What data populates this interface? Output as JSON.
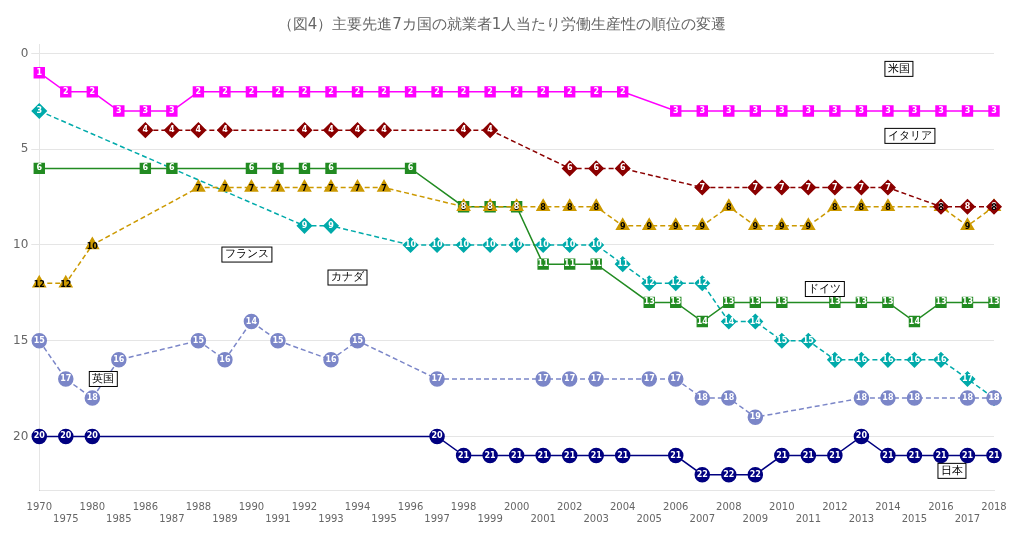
{
  "chart_data": {
    "type": "line",
    "title": "（図4）主要先進7カ国の就業者1人当たり労働生産性の順位の変遷",
    "categories": [
      "1970",
      "1975",
      "1980",
      "1985",
      "1986",
      "1987",
      "1988",
      "1989",
      "1990",
      "1991",
      "1992",
      "1993",
      "1994",
      "1995",
      "1996",
      "1997",
      "1998",
      "1999",
      "2000",
      "2001",
      "2002",
      "2003",
      "2004",
      "2005",
      "2006",
      "2007",
      "2008",
      "2009",
      "2010",
      "2011",
      "2012",
      "2013",
      "2014",
      "2015",
      "2016",
      "2017",
      "2018"
    ],
    "series": [
      {
        "name": "米国",
        "color": "#ff00ff",
        "marker": "square",
        "line_style": "solid",
        "values": [
          1,
          2,
          2,
          3,
          3,
          3,
          2,
          2,
          2,
          2,
          2,
          2,
          2,
          2,
          2,
          2,
          2,
          2,
          2,
          2,
          2,
          2,
          2,
          null,
          3,
          3,
          3,
          3,
          3,
          3,
          3,
          3,
          3,
          3,
          3,
          3,
          3
        ]
      },
      {
        "name": "イタリア",
        "color": "#8b0000",
        "marker": "diamond",
        "line_style": "dashed",
        "values": [
          null,
          null,
          null,
          null,
          4,
          4,
          4,
          4,
          null,
          null,
          4,
          4,
          4,
          4,
          null,
          null,
          4,
          4,
          null,
          null,
          6,
          6,
          6,
          null,
          null,
          7,
          null,
          7,
          7,
          7,
          7,
          7,
          7,
          null,
          8,
          8,
          8
        ]
      },
      {
        "name": "フランス",
        "color": "#cc9900",
        "marker": "triangle",
        "line_style": "dashed",
        "values": [
          12,
          12,
          10,
          null,
          null,
          null,
          7,
          7,
          7,
          7,
          7,
          7,
          7,
          7,
          null,
          null,
          8,
          8,
          8,
          8,
          8,
          8,
          9,
          9,
          9,
          9,
          8,
          9,
          9,
          9,
          8,
          8,
          8,
          null,
          8,
          9,
          8
        ]
      },
      {
        "name": "ドイツ",
        "color": "#228b22",
        "marker": "square",
        "line_style": "solid",
        "values": [
          6,
          null,
          null,
          null,
          6,
          6,
          null,
          null,
          6,
          6,
          6,
          6,
          null,
          null,
          6,
          null,
          8,
          8,
          8,
          11,
          11,
          11,
          null,
          13,
          13,
          14,
          13,
          13,
          13,
          null,
          13,
          13,
          13,
          14,
          13,
          13,
          13
        ]
      },
      {
        "name": "英国",
        "color": "#7b86c8",
        "marker": "circle",
        "line_style": "dashed",
        "values": [
          15,
          17,
          18,
          16,
          null,
          null,
          15,
          16,
          14,
          15,
          null,
          16,
          15,
          null,
          null,
          17,
          null,
          null,
          null,
          17,
          17,
          17,
          null,
          17,
          17,
          18,
          18,
          19,
          null,
          null,
          null,
          18,
          18,
          18,
          null,
          18,
          18
        ]
      },
      {
        "name": "日本",
        "color": "#000080",
        "marker": "circle",
        "line_style": "solid",
        "values": [
          20,
          20,
          20,
          null,
          null,
          null,
          null,
          null,
          null,
          null,
          null,
          null,
          null,
          null,
          null,
          20,
          21,
          21,
          21,
          21,
          21,
          21,
          21,
          null,
          21,
          22,
          22,
          22,
          21,
          21,
          21,
          20,
          21,
          21,
          21,
          21,
          21
        ]
      },
      {
        "name": "カナダ",
        "color": "#00aaaa",
        "marker": "diamond",
        "line_style": "dashed",
        "values": [
          3,
          null,
          null,
          null,
          null,
          null,
          null,
          null,
          null,
          null,
          9,
          9,
          null,
          null,
          10,
          10,
          10,
          10,
          10,
          10,
          10,
          10,
          11,
          12,
          12,
          12,
          14,
          14,
          15,
          15,
          16,
          16,
          16,
          16,
          16,
          17,
          18
        ]
      }
    ],
    "ylim": [
      22.8,
      -0.5
    ],
    "yticks": [
      0,
      5,
      10,
      15,
      20
    ],
    "grid": true,
    "data_labels": true,
    "annotations": [
      {
        "text": "フランス",
        "x": "1989",
        "y": 10.5
      },
      {
        "text": "カナダ",
        "x": "1993",
        "y": 11.7
      },
      {
        "text": "英国",
        "x": "1980",
        "y": 17.0
      },
      {
        "text": "ドイツ",
        "x": "2011",
        "y": 12.3
      },
      {
        "text": "イタリア",
        "x": "2014",
        "y": 4.3
      },
      {
        "text": "日本",
        "x": "2016",
        "y": 21.8
      },
      {
        "text": "米国",
        "x": "2014",
        "y": 0.8
      }
    ]
  }
}
